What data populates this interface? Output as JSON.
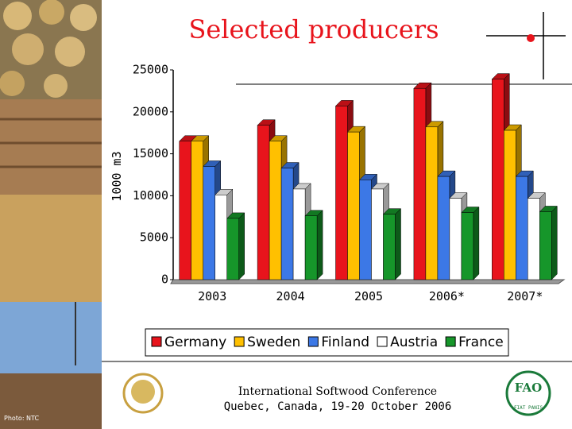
{
  "chart_data": {
    "type": "bar3d",
    "title": "Selected producers",
    "y_label": "1000 m3",
    "categories": [
      "2003",
      "2004",
      "2005",
      "2006*",
      "2007*"
    ],
    "series": [
      {
        "name": "Germany",
        "color": "#e8141c",
        "values": [
          16500,
          18400,
          20700,
          22800,
          23900
        ]
      },
      {
        "name": "Sweden",
        "color": "#ffc000",
        "values": [
          16500,
          16500,
          17600,
          18200,
          17800
        ]
      },
      {
        "name": "Finland",
        "color": "#3c78e6",
        "values": [
          13500,
          13300,
          11900,
          12300,
          12300
        ]
      },
      {
        "name": "Austria",
        "color": "#ffffff",
        "values": [
          10100,
          10800,
          10800,
          9700,
          9700
        ]
      },
      {
        "name": "France",
        "color": "#16962a",
        "values": [
          7300,
          7600,
          7800,
          8000,
          8100
        ]
      }
    ],
    "ylim": [
      0,
      25000
    ],
    "yticks": [
      0,
      5000,
      10000,
      15000,
      20000,
      25000
    ],
    "legend": "bottom"
  },
  "footer": {
    "conference": "International Softwood Conference",
    "place": "Quebec, Canada, 19-20 October 2006",
    "photo_credit": "Photo: NTC",
    "fao_logo": "FAO",
    "fao_motto": "FIAT PANIS"
  }
}
